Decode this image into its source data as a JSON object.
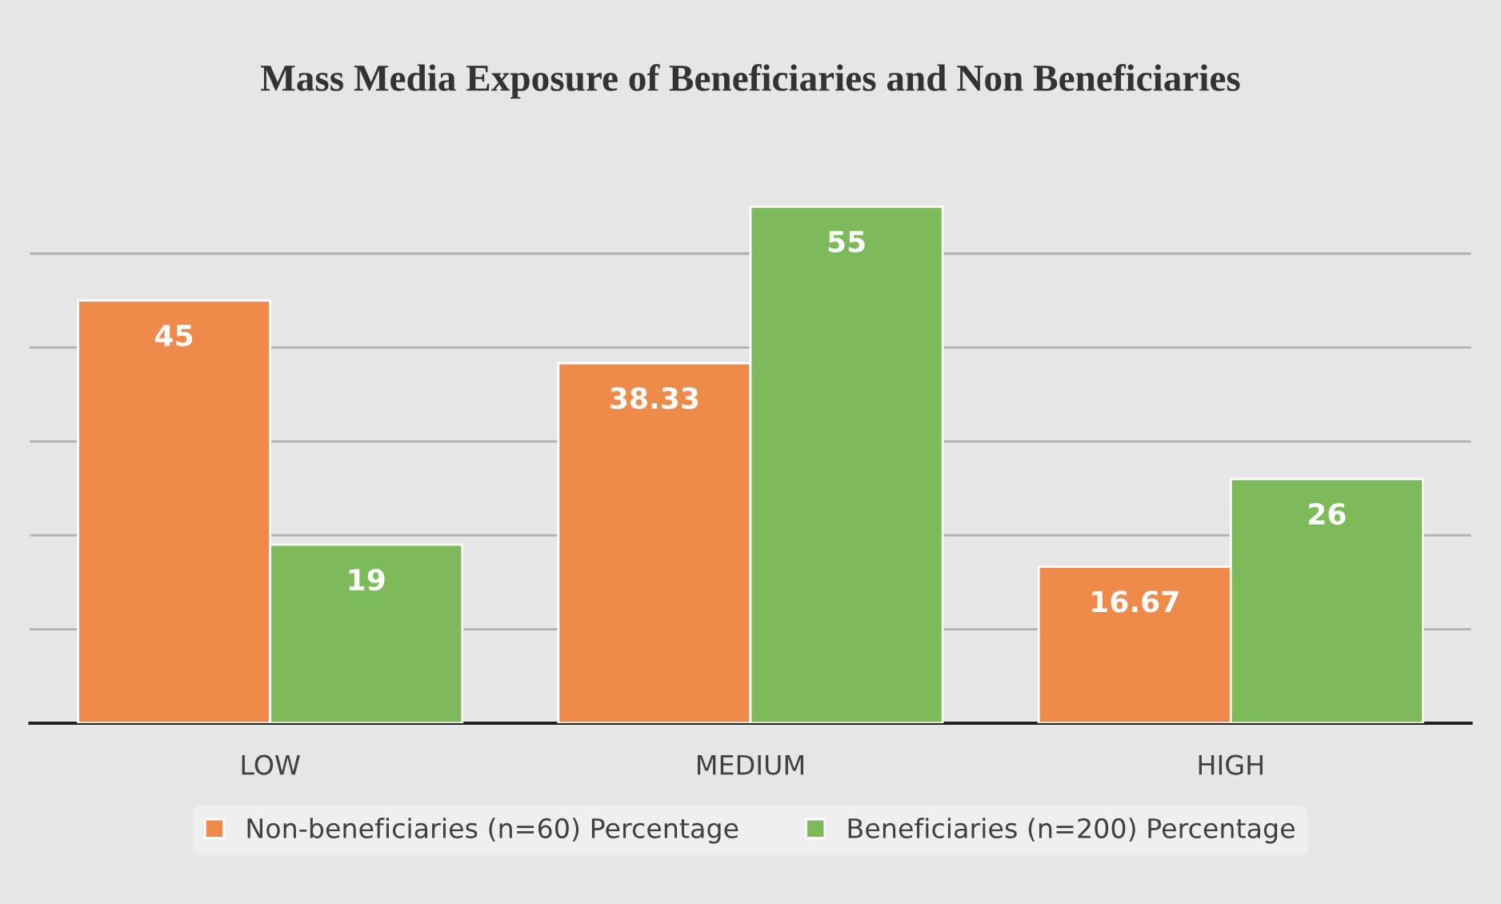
{
  "chart_data": {
    "type": "bar",
    "title": "Mass Media Exposure of Beneficiaries and Non Beneficiaries",
    "categories": [
      "LOW",
      "MEDIUM",
      "HIGH"
    ],
    "series": [
      {
        "name": "Non-beneficiaries (n=60) Percentage",
        "color": "#ee8a4a",
        "values": [
          45,
          38.33,
          16.67
        ]
      },
      {
        "name": "Beneficiaries (n=200) Percentage",
        "color": "#7dba5a",
        "values": [
          19,
          55,
          26
        ]
      }
    ],
    "data_labels": true,
    "yticks": [
      {
        "value": 0,
        "label": null
      },
      {
        "value": 10,
        "label": null
      },
      {
        "value": 20,
        "label": null
      },
      {
        "value": 30,
        "label": null
      },
      {
        "value": 40,
        "label": null
      },
      {
        "value": 50,
        "label": null
      }
    ],
    "tick_labels": "x",
    "grid": "y",
    "legend": "bottom"
  }
}
